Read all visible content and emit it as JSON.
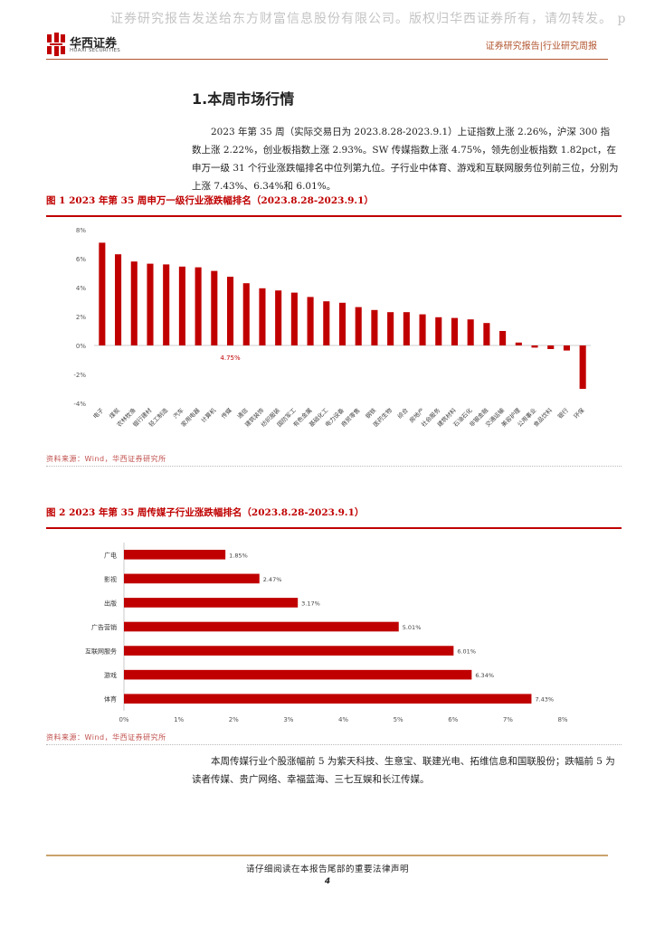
{
  "watermark": "证券研究报告发送给东方财富信息股份有限公司。版权归华西证券所有，请勿转发。 p",
  "header": {
    "brand_cn": "华西证券",
    "brand_en": "HUAXI SECURITIES",
    "report_type": "证券研究报告|行业研究周报"
  },
  "section": {
    "title": "1.本周市场行情",
    "paragraph1": "2023 年第 35 周（实际交易日为 2023.8.28-2023.9.1）上证指数上涨 2.26%，沪深 300 指数上涨 2.22%，创业板指数上涨 2.93%。SW 传媒指数上涨 4.75%，领先创业板指数 1.82pct，在申万一级 31 个行业涨跌幅排名中位列第九位。子行业中体育、游戏和互联网服务位列前三位，分别为上涨 7.43%、6.34%和 6.01%。",
    "paragraph2": "本周传媒行业个股涨幅前 5 为紫天科技、生意宝、联建光电、拓维信息和国联股份；跌幅前 5 为读者传媒、贵广网络、幸福蓝海、三七互娱和长江传媒。"
  },
  "figure1": {
    "title": "图 1 2023 年第 35 周申万一级行业涨跌幅排名（2023.8.28-2023.9.1）",
    "source": "资料来源：Wind，华西证券研究所"
  },
  "figure2": {
    "title": "图 2 2023 年第 35 周传媒子行业涨跌幅排名（2023.8.28-2023.9.1）",
    "source": "资料来源：Wind，华西证券研究所"
  },
  "footer": {
    "disclaimer": "请仔细阅读在本报告尾部的重要法律声明",
    "page": "4"
  },
  "colors": {
    "bar": "#c00000",
    "accent": "#b1542e",
    "grid": "#d9d9d9"
  },
  "chart_data": [
    {
      "type": "bar",
      "categories": [
        "电子",
        "煤炭",
        "农林牧渔",
        "银行建材",
        "轻工制造",
        "汽车",
        "家用电器",
        "计算机",
        "传媒",
        "通信",
        "建筑装饰",
        "纺织服装",
        "国防军工",
        "有色金属",
        "基础化工",
        "电力设备",
        "商贸零售",
        "钢铁",
        "医药生物",
        "综合",
        "房地产",
        "社会服务",
        "建筑材料",
        "石油石化",
        "非银金融",
        "交通运输",
        "美容护理",
        "公用事业",
        "食品饮料",
        "银行",
        "环保"
      ],
      "values": [
        7.1,
        6.3,
        5.8,
        5.65,
        5.6,
        5.45,
        5.4,
        5.15,
        4.75,
        4.3,
        3.95,
        3.8,
        3.65,
        3.35,
        3.05,
        2.95,
        2.65,
        2.45,
        2.3,
        2.3,
        2.15,
        1.95,
        1.9,
        1.8,
        1.55,
        1.0,
        0.2,
        -0.15,
        -0.25,
        -0.35,
        -3.0
      ],
      "highlight_label": "4.75%",
      "yticks": [
        "8%",
        "6%",
        "4%",
        "2%",
        "0%",
        "-2%",
        "-4%"
      ],
      "ylim": [
        -4,
        8
      ],
      "grid": false
    },
    {
      "type": "bar",
      "orientation": "horizontal",
      "categories": [
        "广电",
        "影视",
        "出版",
        "广告营销",
        "互联网服务",
        "游戏",
        "体育"
      ],
      "values": [
        1.85,
        2.47,
        3.17,
        5.01,
        6.01,
        6.34,
        7.43
      ],
      "labels": [
        "1.85%",
        "2.47%",
        "3.17%",
        "5.01%",
        "6.01%",
        "6.34%",
        "7.43%"
      ],
      "xticks": [
        "0%",
        "1%",
        "2%",
        "3%",
        "4%",
        "5%",
        "6%",
        "7%",
        "8%"
      ],
      "xlim": [
        0,
        8
      ],
      "grid": false
    }
  ]
}
